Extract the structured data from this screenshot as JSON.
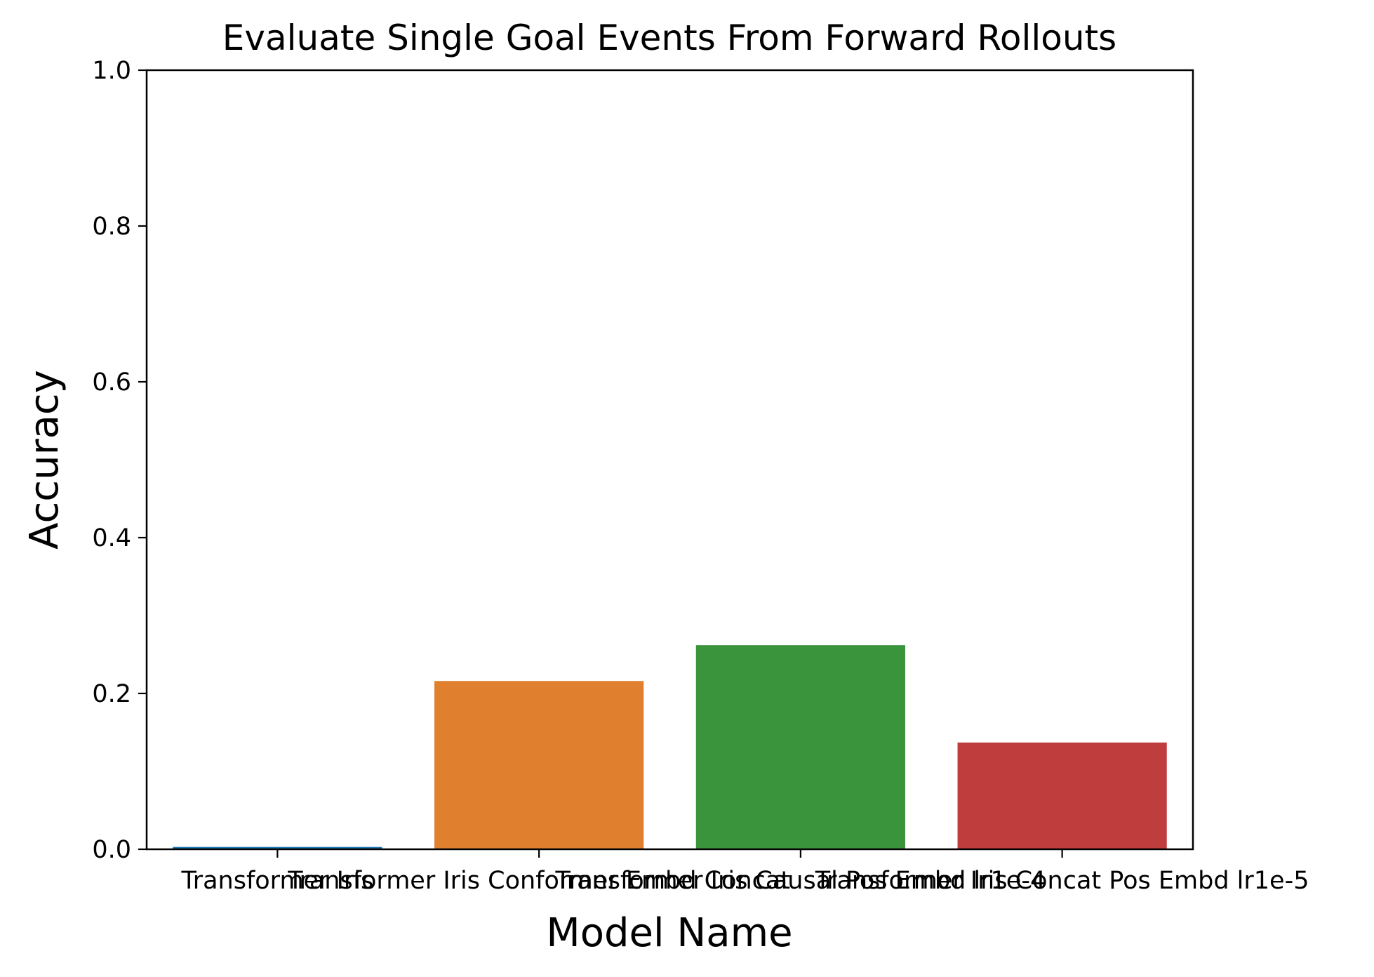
{
  "chart_data": {
    "type": "bar",
    "title": "Evaluate Single Goal Events From Forward Rollouts",
    "xlabel": "Model Name",
    "ylabel": "Accuracy",
    "categories": [
      "Transformer Iris",
      "Transformer Iris Conformer Embd Concat",
      "Transformer Iris Causal Pos Embd lr1e-4",
      "Transformer Iris Concat Pos Embd lr1e-5"
    ],
    "tick_labels_as_shown": [
      "Transformer Iris",
      "Transformer Iris Conformer Embd Concat",
      "Transformer Iris Causal Pos Embd lr1e-4",
      "Transformer Iris Concat Pos Embd lr1e-5"
    ],
    "values": [
      0.003,
      0.216,
      0.262,
      0.137
    ],
    "colors": [
      "#1f77b4",
      "#e0802e",
      "#3a943b",
      "#c03d3e"
    ],
    "ylim": [
      0,
      1.0
    ],
    "yticks": [
      "0.0",
      "0.2",
      "0.4",
      "0.6",
      "0.8",
      "1.0"
    ],
    "grid": false,
    "legend": "none"
  }
}
